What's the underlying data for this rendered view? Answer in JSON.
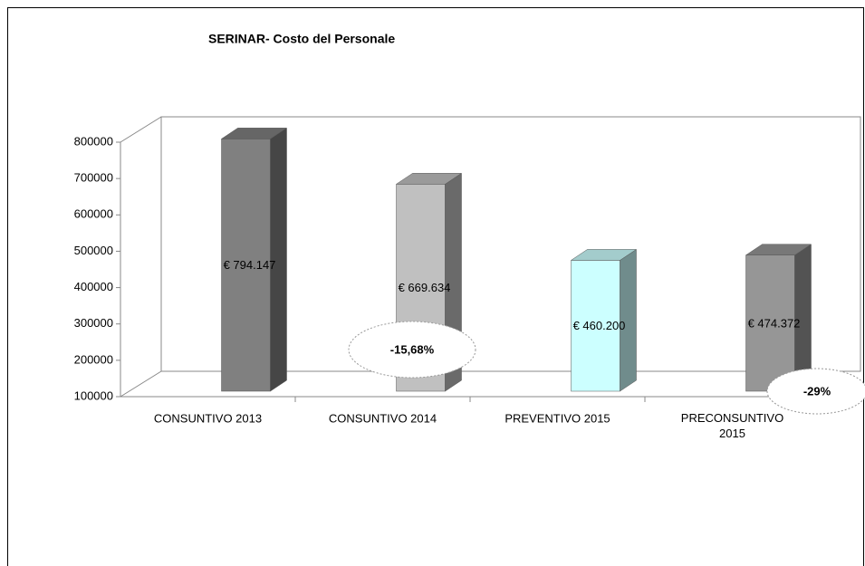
{
  "chart_data": {
    "type": "bar3d",
    "title": "SERINAR- Costo del Personale",
    "categories": [
      "CONSUNTIVO 2013",
      "CONSUNTIVO 2014",
      "PREVENTIVO 2015",
      "PRECONSUNTIVO 2015"
    ],
    "values": [
      794147,
      669634,
      460200,
      474372
    ],
    "value_labels": [
      "€ 794.147",
      "€ 669.634",
      "€ 460.200",
      "€ 474.372"
    ],
    "colors": [
      "#808080",
      "#c0c0c0",
      "#ccffff",
      "#969696"
    ],
    "ylim": [
      100000,
      800000
    ],
    "yticks": [
      100000,
      200000,
      300000,
      400000,
      500000,
      600000,
      700000,
      800000
    ],
    "annotations": [
      "-15,68%",
      "-29%"
    ]
  }
}
